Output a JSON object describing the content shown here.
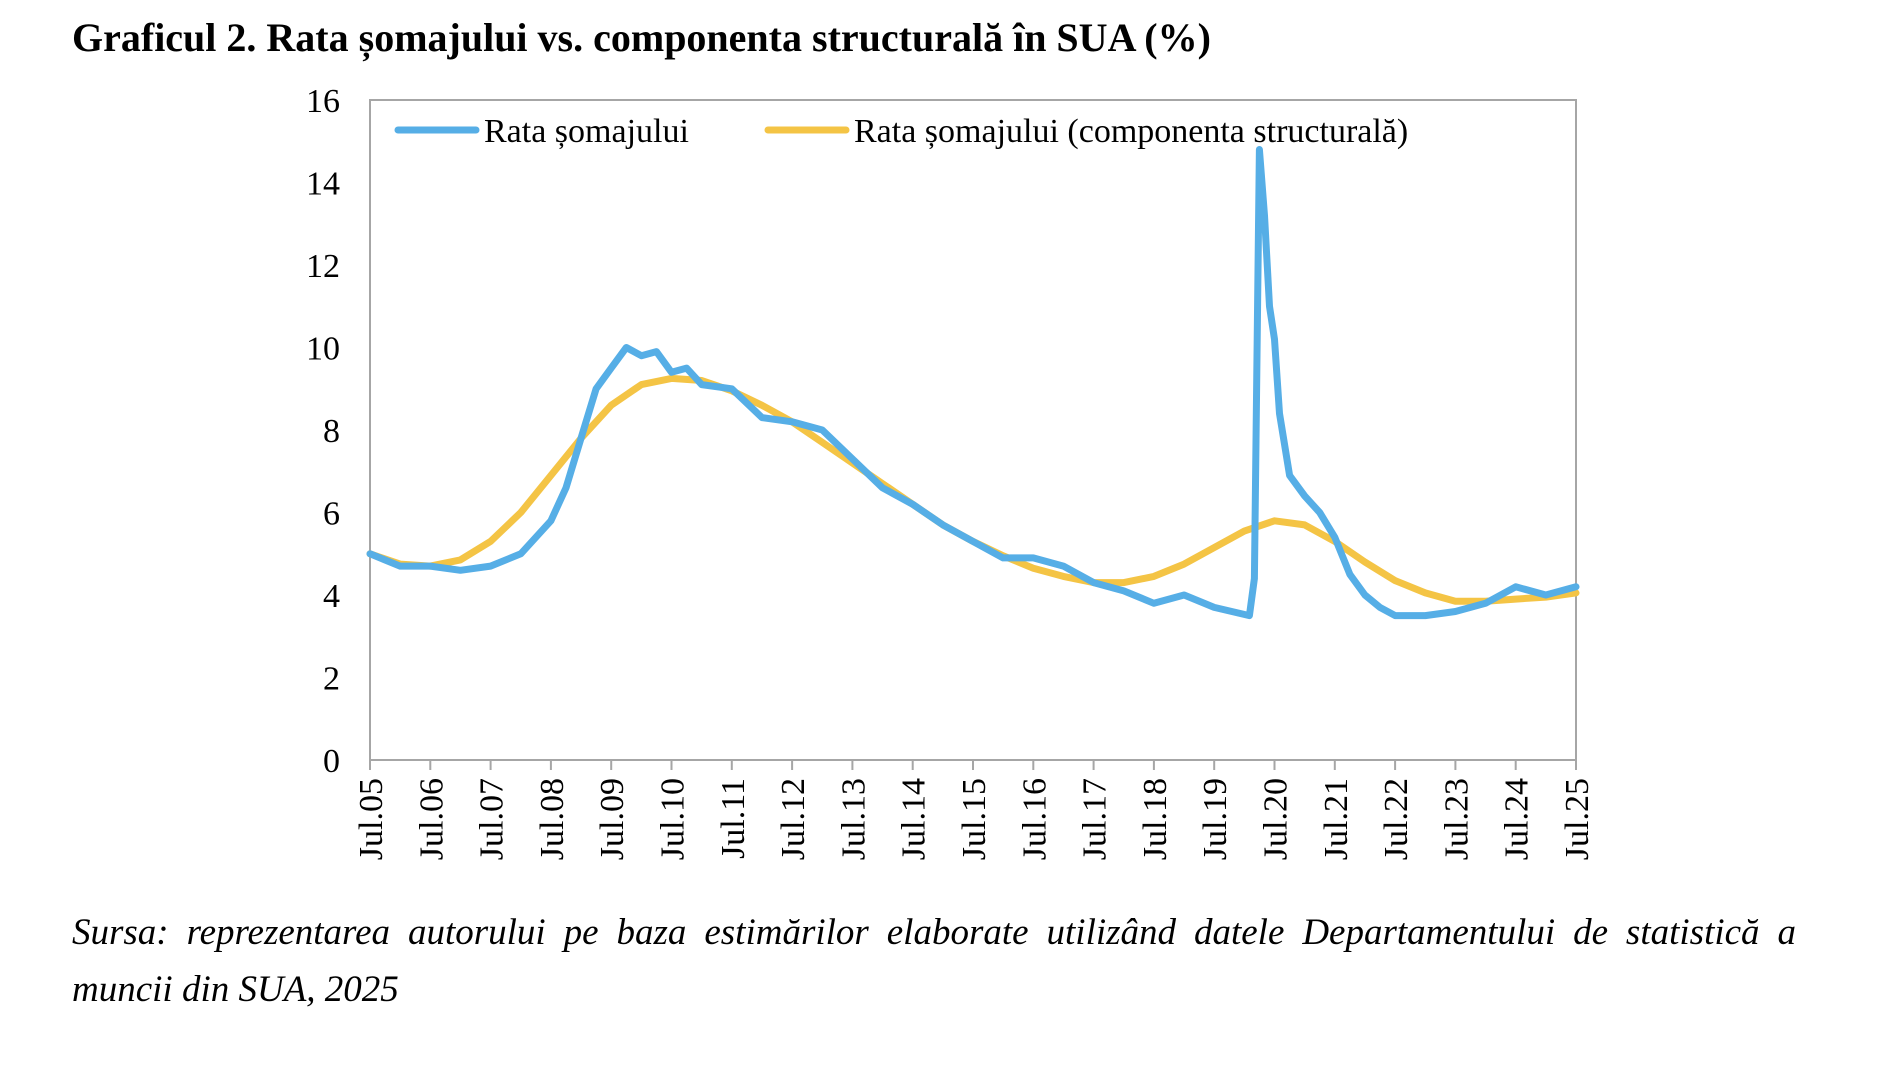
{
  "chart_data": {
    "type": "line",
    "title": "Graficul 2. Rata șomajului vs. componenta structurală în SUA (%)",
    "xlabel": "",
    "ylabel": "",
    "ylim": [
      0,
      16
    ],
    "yticks": [
      0,
      2,
      4,
      6,
      8,
      10,
      12,
      14,
      16
    ],
    "x_start": "Jul.05",
    "x_ticks": [
      "Jul.05",
      "Jul.06",
      "Jul.07",
      "Jul.08",
      "Jul.09",
      "Jul.10",
      "Jul.11",
      "Jul.12",
      "Jul.13",
      "Jul.14",
      "Jul.15",
      "Jul.16",
      "Jul.17",
      "Jul.18",
      "Jul.19",
      "Jul.20",
      "Jul.21",
      "Jul.22",
      "Jul.23",
      "Jul.24",
      "Jul.25"
    ],
    "grid": false,
    "legend_position": "top",
    "series": [
      {
        "name": "Rata șomajului",
        "color": "#56AEE6",
        "points": [
          [
            "Jul.05",
            5.0
          ],
          [
            "Jan.06",
            4.7
          ],
          [
            "Jul.06",
            4.7
          ],
          [
            "Jan.07",
            4.6
          ],
          [
            "Jul.07",
            4.7
          ],
          [
            "Jan.08",
            5.0
          ],
          [
            "Jul.08",
            5.8
          ],
          [
            "Oct.08",
            6.6
          ],
          [
            "Jan.09",
            7.8
          ],
          [
            "Apr.09",
            9.0
          ],
          [
            "Jul.09",
            9.5
          ],
          [
            "Oct.09",
            10.0
          ],
          [
            "Jan.10",
            9.8
          ],
          [
            "Apr.10",
            9.9
          ],
          [
            "Jul.10",
            9.4
          ],
          [
            "Oct.10",
            9.5
          ],
          [
            "Jan.11",
            9.1
          ],
          [
            "Jul.11",
            9.0
          ],
          [
            "Jan.12",
            8.3
          ],
          [
            "Jul.12",
            8.2
          ],
          [
            "Jan.13",
            8.0
          ],
          [
            "Jul.13",
            7.3
          ],
          [
            "Jan.14",
            6.6
          ],
          [
            "Jul.14",
            6.2
          ],
          [
            "Jan.15",
            5.7
          ],
          [
            "Jul.15",
            5.3
          ],
          [
            "Jan.16",
            4.9
          ],
          [
            "Jul.16",
            4.9
          ],
          [
            "Jan.17",
            4.7
          ],
          [
            "Jul.17",
            4.3
          ],
          [
            "Jan.18",
            4.1
          ],
          [
            "Jul.18",
            3.8
          ],
          [
            "Jan.19",
            4.0
          ],
          [
            "Jul.19",
            3.7
          ],
          [
            "Feb.20",
            3.5
          ],
          [
            "Mar.20",
            4.4
          ],
          [
            "Apr.20",
            14.8
          ],
          [
            "May.20",
            13.2
          ],
          [
            "Jun.20",
            11.0
          ],
          [
            "Jul.20",
            10.2
          ],
          [
            "Aug.20",
            8.4
          ],
          [
            "Oct.20",
            6.9
          ],
          [
            "Jan.21",
            6.4
          ],
          [
            "Apr.21",
            6.0
          ],
          [
            "Jul.21",
            5.4
          ],
          [
            "Oct.21",
            4.5
          ],
          [
            "Jan.22",
            4.0
          ],
          [
            "Apr.22",
            3.7
          ],
          [
            "Jul.22",
            3.5
          ],
          [
            "Jan.23",
            3.5
          ],
          [
            "Jul.23",
            3.6
          ],
          [
            "Jan.24",
            3.8
          ],
          [
            "Jul.24",
            4.2
          ],
          [
            "Jan.25",
            4.0
          ],
          [
            "Jul.25",
            4.2
          ]
        ]
      },
      {
        "name": "Rata șomajului (componenta structurală)",
        "color": "#F4C445",
        "points": [
          [
            "Jul.05",
            5.0
          ],
          [
            "Jan.06",
            4.75
          ],
          [
            "Jul.06",
            4.7
          ],
          [
            "Jan.07",
            4.85
          ],
          [
            "Jul.07",
            5.3
          ],
          [
            "Jan.08",
            6.0
          ],
          [
            "Jul.08",
            6.9
          ],
          [
            "Jan.09",
            7.8
          ],
          [
            "Jul.09",
            8.6
          ],
          [
            "Jan.10",
            9.1
          ],
          [
            "Jul.10",
            9.25
          ],
          [
            "Jan.11",
            9.2
          ],
          [
            "Jul.11",
            8.95
          ],
          [
            "Jan.12",
            8.6
          ],
          [
            "Jul.12",
            8.2
          ],
          [
            "Jan.13",
            7.7
          ],
          [
            "Jul.13",
            7.2
          ],
          [
            "Jan.14",
            6.7
          ],
          [
            "Jul.14",
            6.2
          ],
          [
            "Jan.15",
            5.7
          ],
          [
            "Jul.15",
            5.3
          ],
          [
            "Jan.16",
            4.95
          ],
          [
            "Jul.16",
            4.65
          ],
          [
            "Jan.17",
            4.45
          ],
          [
            "Jul.17",
            4.3
          ],
          [
            "Jan.18",
            4.3
          ],
          [
            "Jul.18",
            4.45
          ],
          [
            "Jan.19",
            4.75
          ],
          [
            "Jul.19",
            5.15
          ],
          [
            "Jan.20",
            5.55
          ],
          [
            "Jul.20",
            5.8
          ],
          [
            "Jan.21",
            5.7
          ],
          [
            "Jul.21",
            5.3
          ],
          [
            "Jan.22",
            4.8
          ],
          [
            "Jul.22",
            4.35
          ],
          [
            "Jan.23",
            4.05
          ],
          [
            "Jul.23",
            3.85
          ],
          [
            "Jan.24",
            3.85
          ],
          [
            "Jul.24",
            3.9
          ],
          [
            "Jan.25",
            3.95
          ],
          [
            "Jul.25",
            4.05
          ]
        ]
      }
    ],
    "source": "Sursa: reprezentarea autorului pe baza estimărilor elaborate utilizând datele Departamentului de statistică a muncii din SUA, 2025"
  }
}
